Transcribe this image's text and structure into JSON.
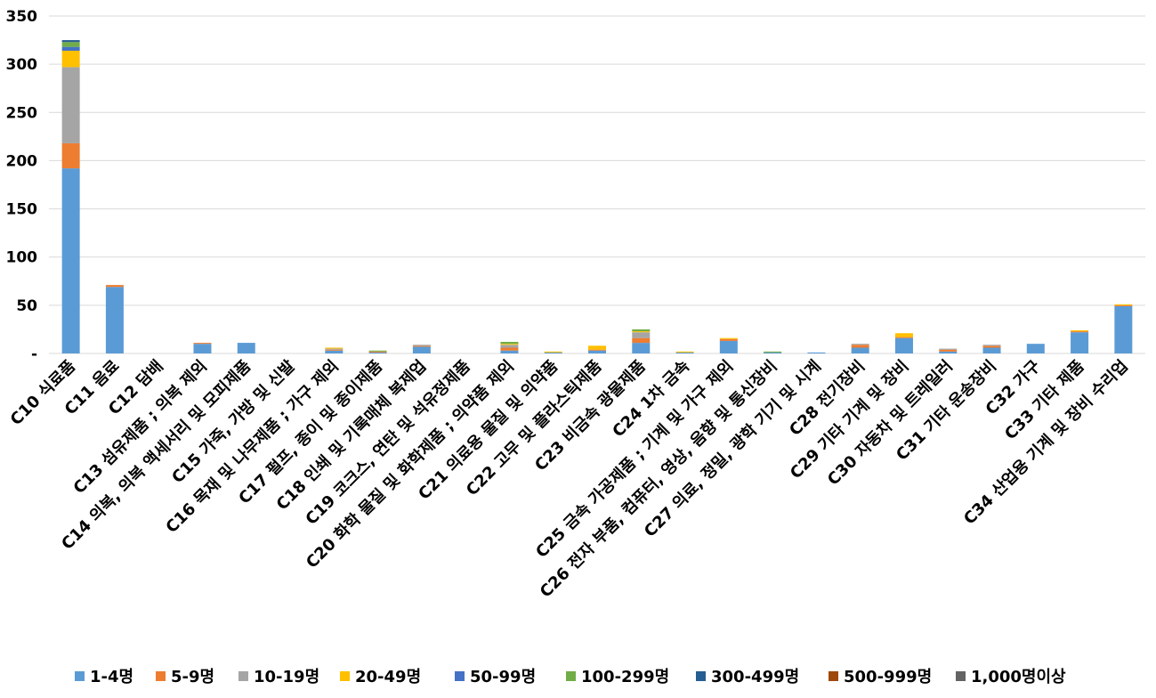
{
  "chart_data": {
    "type": "bar",
    "stacked": true,
    "title": "",
    "xlabel": "",
    "ylabel": "",
    "ylim": [
      0,
      350
    ],
    "ytick_values": [
      0,
      50,
      100,
      150,
      200,
      250,
      300,
      350
    ],
    "ytick_labels": [
      "-",
      "50",
      "100",
      "150",
      "200",
      "250",
      "300",
      "350"
    ],
    "grid": true,
    "legend_position": "bottom",
    "categories": [
      "C10 식료품",
      "C11 음료",
      "C12 담배",
      "C13 섬유제품 ; 의복 제외",
      "C14 의복, 의복 액세서리 및 모피제품",
      "C15 가죽, 가방 및 신발",
      "C16 목재 및 나무제품 ; 가구 제외",
      "C17 펄프, 종이 및 종이제품",
      "C18 인쇄 및 기록매체 복제업",
      "C19 코크스, 연탄 및 석유정제품",
      "C20 화학 물질 및 화학제품 ; 의약품 제외",
      "C21 의료용 물질 및 의약품",
      "C22 고무 및 플라스틱제품",
      "C23 비금속 광물제품",
      "C24 1차 금속",
      "C25 금속 가공제품 ; 기계 및 가구 제외",
      "C26 전자 부품, 컴퓨터, 영상, 음향 및 통신장비",
      "C27 의료, 정밀, 광학 기기 및 시계",
      "C28 전기장비",
      "C29 기타 기계 및 장비",
      "C30 자동차 및 트레일러",
      "C31 기타 운송장비",
      "C32 가구",
      "C33 기타 제품",
      "C34 산업용 기계 및 장비 수리업"
    ],
    "series": [
      {
        "name": "1-4명",
        "color": "#5B9BD5",
        "values": [
          192,
          69,
          0,
          10,
          11,
          0,
          3,
          1,
          7,
          0,
          3,
          1,
          3,
          11,
          1,
          13,
          1,
          1,
          6,
          16,
          2,
          6,
          10,
          22,
          49
        ]
      },
      {
        "name": "5-9명",
        "color": "#ED7D31",
        "values": [
          26,
          2,
          0,
          1,
          0,
          0,
          1,
          1,
          1,
          0,
          3,
          0,
          1,
          5,
          0,
          2,
          0,
          0,
          3,
          1,
          2,
          2,
          0,
          1,
          1
        ]
      },
      {
        "name": "10-19명",
        "color": "#A5A5A5",
        "values": [
          79,
          0,
          0,
          0,
          0,
          0,
          1,
          0,
          1,
          0,
          3,
          0,
          0,
          6,
          0,
          0,
          0,
          0,
          1,
          0,
          1,
          1,
          0,
          0,
          0
        ]
      },
      {
        "name": "20-49명",
        "color": "#FFC000",
        "values": [
          17,
          0,
          0,
          0,
          0,
          0,
          1,
          0,
          0,
          0,
          1,
          1,
          4,
          1,
          1,
          1,
          0,
          0,
          0,
          4,
          0,
          0,
          0,
          1,
          1
        ]
      },
      {
        "name": "50-99명",
        "color": "#4472C4",
        "values": [
          4,
          0,
          0,
          0,
          0,
          0,
          0,
          0,
          0,
          0,
          0,
          0,
          0,
          0,
          0,
          0,
          0,
          0,
          0,
          0,
          0,
          0,
          0,
          0,
          0
        ]
      },
      {
        "name": "100-299명",
        "color": "#70AD47",
        "values": [
          5,
          0,
          0,
          0,
          0,
          0,
          0,
          1,
          0,
          0,
          2,
          0,
          0,
          2,
          0,
          0,
          1,
          0,
          0,
          0,
          0,
          0,
          0,
          0,
          0
        ]
      },
      {
        "name": "300-499명",
        "color": "#255E91",
        "values": [
          2,
          0,
          0,
          0,
          0,
          0,
          0,
          0,
          0,
          0,
          0,
          0,
          0,
          0,
          0,
          0,
          0,
          0,
          0,
          0,
          0,
          0,
          0,
          0,
          0
        ]
      },
      {
        "name": "500-999명",
        "color": "#9E480E",
        "values": [
          0,
          0,
          0,
          0,
          0,
          0,
          0,
          0,
          0,
          0,
          0,
          0,
          0,
          0,
          0,
          0,
          0,
          0,
          0,
          0,
          0,
          0,
          0,
          0,
          0
        ]
      },
      {
        "name": "1,000명이상",
        "color": "#636363",
        "values": [
          0,
          0,
          0,
          0,
          0,
          0,
          0,
          0,
          0,
          0,
          0,
          0,
          0,
          0,
          0,
          0,
          0,
          0,
          0,
          0,
          0,
          0,
          0,
          0,
          0
        ]
      }
    ]
  }
}
